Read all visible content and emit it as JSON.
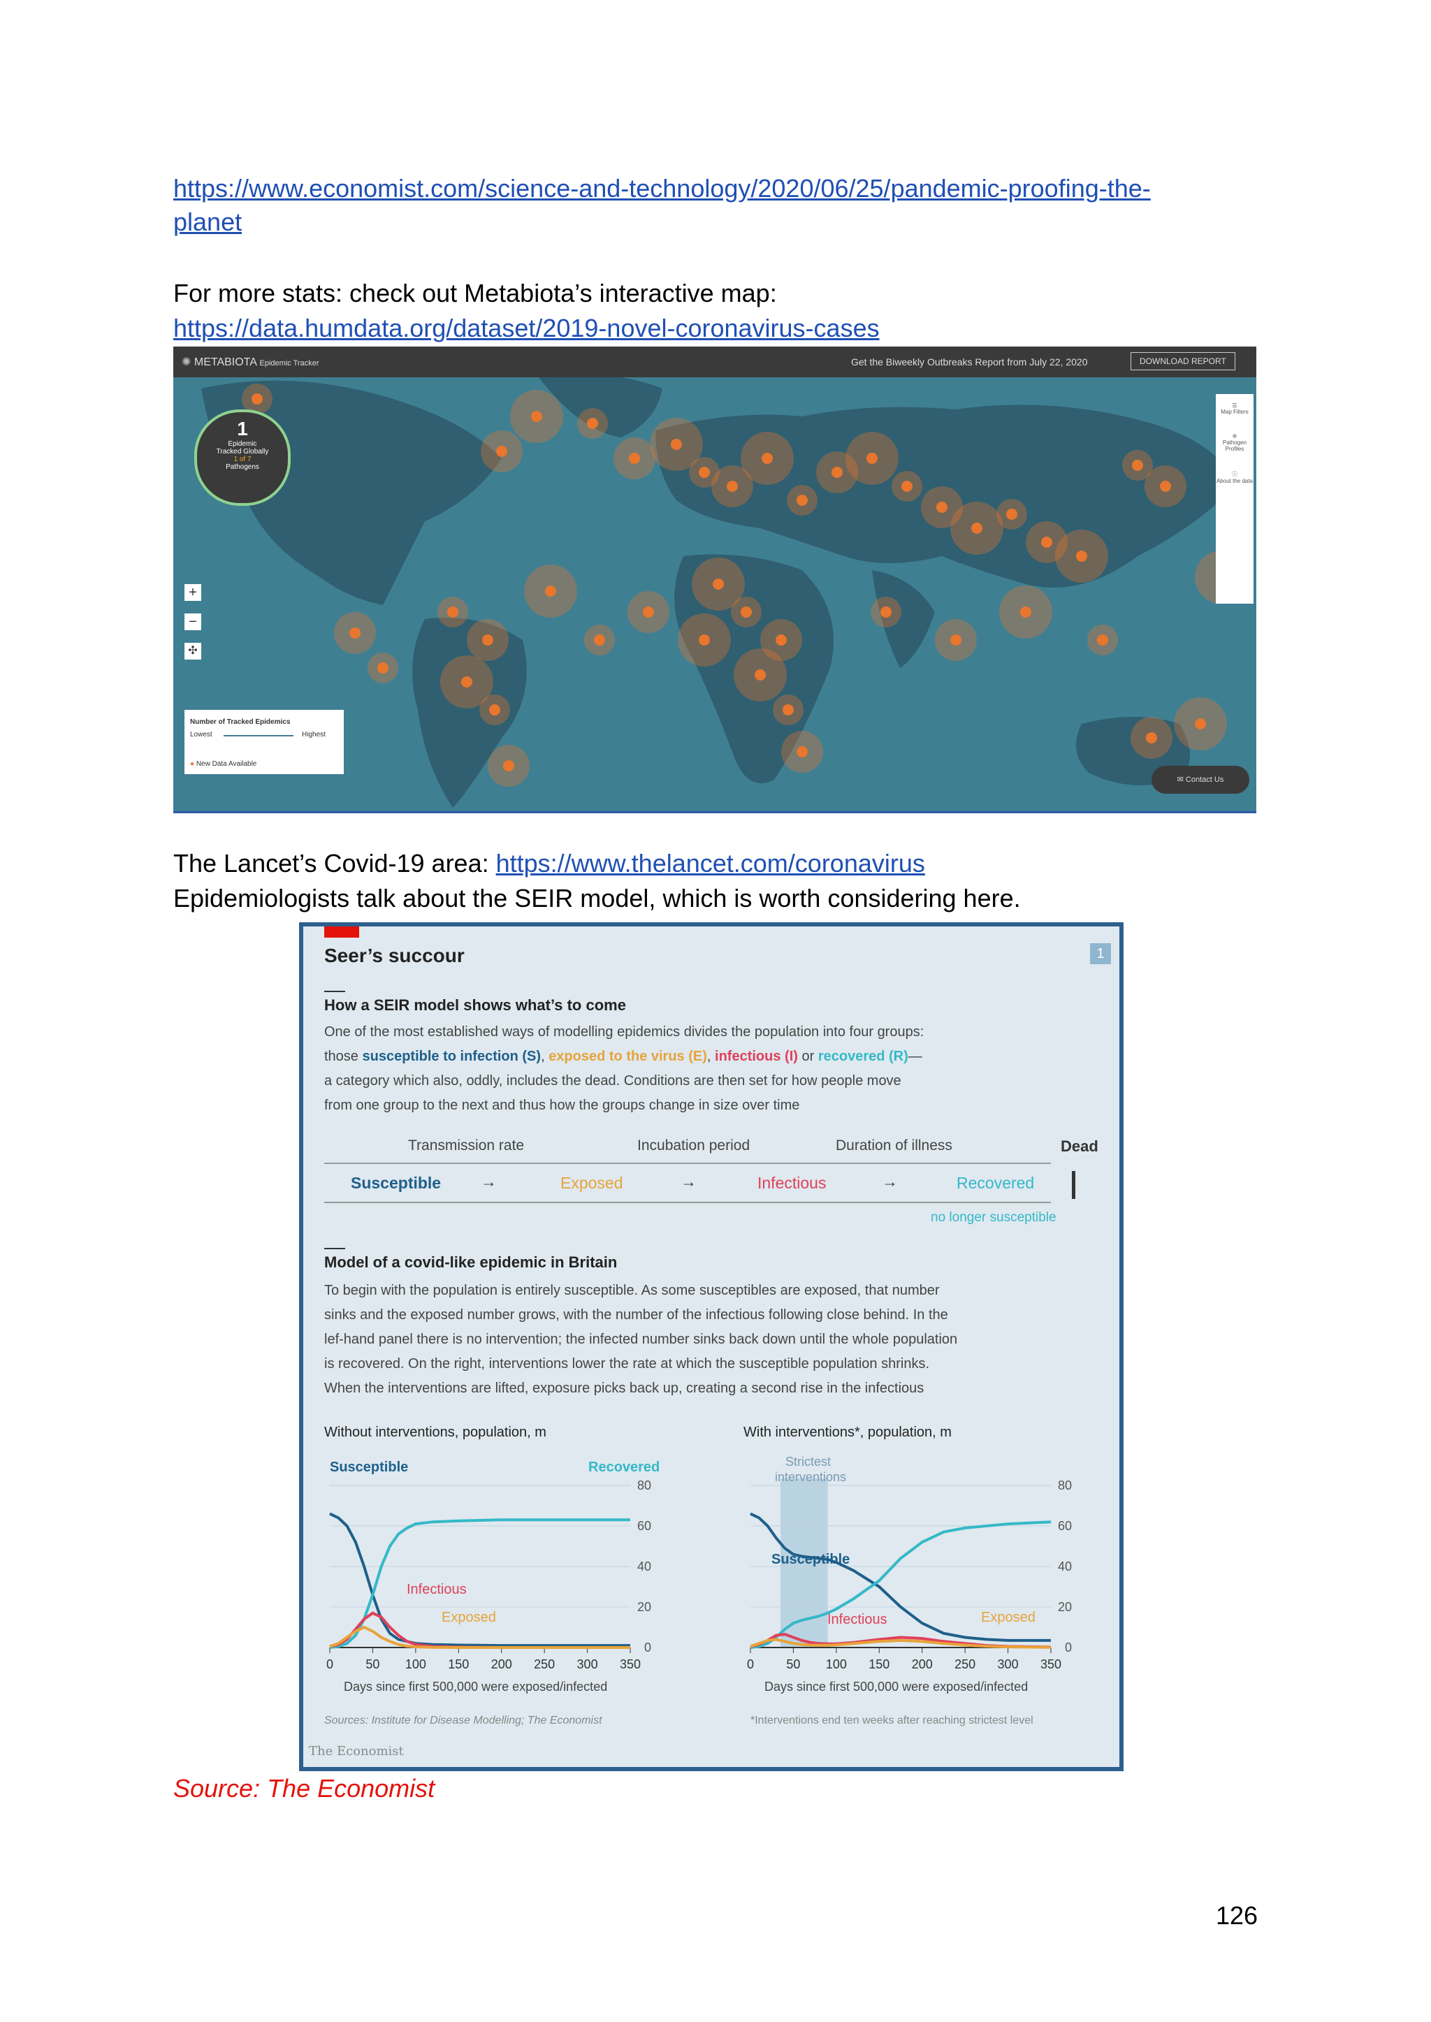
{
  "link1": "https://www.economist.com/science-and-technology/2020/06/25/pandemic-proofing-the-planet",
  "link1_line1": "https://www.economist.com/science-and-technology/2020/06/25/pandemic-proofing-the-",
  "link1_line2": "planet",
  "more_stats_text": "For more stats: check out Metabiota’s interactive map:",
  "link2": "https://data.humdata.org/dataset/2019-novel-coronavirus-cases",
  "map": {
    "brand": "METABIOTA",
    "brand_sub": "Epidemic Tracker",
    "report_text": "Get the Biweekly Outbreaks Report from July 22, 2020",
    "download_label": "DOWNLOAD REPORT",
    "counter_number": "1",
    "counter_line1": "Epidemic",
    "counter_line2": "Tracked Globally",
    "counter_line3": "1 of 7",
    "counter_line4": "Pathogens",
    "legend_title": "Number of Tracked Epidemics",
    "legend_lowest": "Lowest",
    "legend_highest": "Highest",
    "legend_new": "New Data Available",
    "side_items": [
      "Map Filters",
      "Pathogen Profiles",
      "About the data"
    ],
    "contact_label": "Contact Us",
    "zoom_in": "+",
    "zoom_out": "−",
    "colors": {
      "ocean": "#3f7f92",
      "land": "#2f5f70",
      "marker": "#e8762c"
    }
  },
  "lancet_prefix": "The Lancet’s Covid-19 area: ",
  "lancet_link": "https://www.thelancet.com/coronavirus",
  "seir_text": "Epidemiologists talk about the SEIR model, which is worth considering here.",
  "figure": {
    "title": "Seer’s succour",
    "badge": "1",
    "subtitle": "How a SEIR model shows what’s to come",
    "intro_line1": "One of the most established ways of modelling epidemics divides the population into four groups:",
    "intro_line2_a": "those ",
    "intro_line2_s": "susceptible to infection (S)",
    "intro_line2_b": ", ",
    "intro_line2_e": "exposed to the virus (E)",
    "intro_line2_c": ", ",
    "intro_line2_i": "infectious (I)",
    "intro_line2_d": " or ",
    "intro_line2_r": "recovered (R)",
    "intro_line2_end": "—",
    "intro_line3": "a category which also, oddly, includes the dead. Conditions are then set for how people move",
    "intro_line4": "from one group to the next and thus how the groups change in size over time",
    "flow_rates": [
      "Transmission rate",
      "Incubation period",
      "Duration of illness"
    ],
    "flow_dead": "Dead",
    "flow_states": [
      "Susceptible",
      "Exposed",
      "Infectious",
      "Recovered"
    ],
    "flow_arrow": "→",
    "flow_note": "no longer susceptible",
    "model_title": "Model of a covid-like epidemic in Britain",
    "model_lines": [
      "To begin with the population is entirely susceptible. As some susceptibles are exposed, that number",
      "sinks and the exposed number grows, with the number of the infectious following close behind. In the",
      "lef-hand panel there is no intervention; the infected number sinks back down until the whole population",
      "is recovered. On the right, interventions lower the rate at which the susceptible population shrinks.",
      "When the interventions are lifted, exposure picks back up, creating a second rise in the infectious"
    ],
    "source": "Sources: Institute for Disease Modelling; The Economist",
    "footnote": "*Interventions end ten weeks after reaching strictest level",
    "brand": "The Economist",
    "colors": {
      "susceptible": "#1f5f8b",
      "exposed": "#e8a33a",
      "infectious": "#e0405a",
      "recovered": "#35b8c8",
      "red": "#e3120b"
    }
  },
  "chart_data": [
    {
      "type": "line",
      "title": "Without interventions, population, m",
      "xlabel": "Days since first 500,000 were exposed/infected",
      "x_ticks": [
        0,
        50,
        100,
        150,
        200,
        250,
        300,
        350
      ],
      "y_ticks": [
        0,
        20,
        40,
        60,
        80
      ],
      "xlim": [
        0,
        350
      ],
      "ylim": [
        0,
        80
      ],
      "annotations": [
        "Susceptible",
        "Recovered",
        "Infectious",
        "Exposed"
      ],
      "x": [
        0,
        10,
        20,
        30,
        40,
        50,
        60,
        70,
        80,
        90,
        100,
        120,
        150,
        200,
        250,
        300,
        350
      ],
      "series": [
        {
          "name": "Susceptible",
          "color": "#1f5f8b",
          "values": [
            66,
            64,
            60,
            52,
            40,
            26,
            14,
            7,
            4,
            3,
            2,
            1.5,
            1.2,
            1,
            1,
            1,
            1
          ]
        },
        {
          "name": "Recovered",
          "color": "#35b8c8",
          "values": [
            0,
            0.5,
            2,
            6,
            14,
            26,
            40,
            50,
            56,
            59,
            61,
            62,
            62.5,
            63,
            63,
            63,
            63
          ]
        },
        {
          "name": "Infectious",
          "color": "#e0405a",
          "values": [
            0.5,
            1.5,
            4,
            9,
            14,
            17,
            15,
            10,
            6,
            3,
            1.5,
            0.5,
            0.2,
            0,
            0,
            0,
            0
          ]
        },
        {
          "name": "Exposed",
          "color": "#e8a33a",
          "values": [
            0.5,
            2,
            5,
            8,
            10,
            8,
            5,
            3,
            1.5,
            0.7,
            0.3,
            0.1,
            0,
            0,
            0,
            0,
            0
          ]
        }
      ]
    },
    {
      "type": "line",
      "title": "With interventions*, population, m",
      "xlabel": "Days since first 500,000 were exposed/infected",
      "x_ticks": [
        0,
        50,
        100,
        150,
        200,
        250,
        300,
        350
      ],
      "y_ticks": [
        0,
        20,
        40,
        60,
        80
      ],
      "xlim": [
        0,
        350
      ],
      "ylim": [
        0,
        80
      ],
      "annotations": [
        "Strictest interventions",
        "Susceptible",
        "Recovered",
        "Infectious",
        "Exposed"
      ],
      "shade_range": [
        35,
        90
      ],
      "x": [
        0,
        10,
        20,
        30,
        40,
        50,
        60,
        70,
        80,
        90,
        100,
        120,
        150,
        175,
        200,
        225,
        250,
        275,
        300,
        350
      ],
      "series": [
        {
          "name": "Susceptible",
          "color": "#1f5f8b",
          "values": [
            66,
            64,
            60,
            54,
            49,
            46,
            45,
            44.5,
            44,
            43.5,
            42,
            38,
            30,
            20,
            12,
            7,
            5,
            4,
            3.5,
            3.5
          ]
        },
        {
          "name": "Recovered",
          "color": "#35b8c8",
          "values": [
            0,
            0.5,
            2,
            5,
            9,
            12,
            13.5,
            14.5,
            15.5,
            17,
            19,
            24,
            33,
            44,
            52,
            57,
            59,
            60,
            61,
            62
          ]
        },
        {
          "name": "Infectious",
          "color": "#e0405a",
          "values": [
            0.5,
            1.5,
            3.5,
            6,
            6.5,
            5,
            3.5,
            2.5,
            2,
            1.8,
            1.8,
            2.5,
            4,
            5,
            4.5,
            3,
            2,
            1,
            0.5,
            0.2
          ]
        },
        {
          "name": "Exposed",
          "color": "#e8a33a",
          "values": [
            0.5,
            2,
            3.5,
            4,
            3,
            2,
            1.5,
            1.2,
            1.1,
            1.1,
            1.3,
            2,
            3,
            3.5,
            3,
            2,
            1.2,
            0.6,
            0.3,
            0.1
          ]
        }
      ]
    }
  ],
  "caption": "Source: The Economist",
  "page_number": "126"
}
